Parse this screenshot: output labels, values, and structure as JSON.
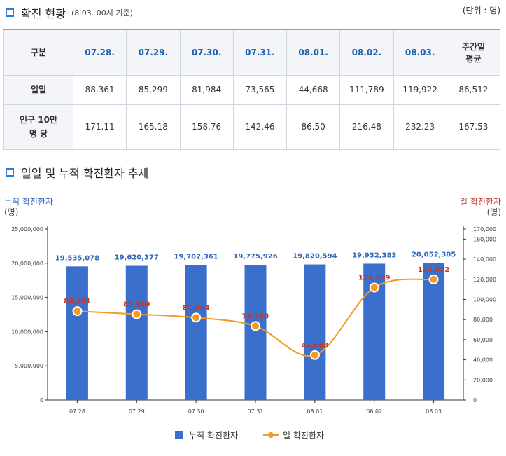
{
  "section1": {
    "title": "확진 현황",
    "subtitle": "(8.03. 00시 기준)",
    "unit": "(단위 : 명)"
  },
  "table": {
    "header_label": "구분",
    "dates": [
      "07.28.",
      "07.29.",
      "07.30.",
      "07.31.",
      "08.01.",
      "08.02.",
      "08.03."
    ],
    "avg_label_line1": "주간일",
    "avg_label_line2": "평균",
    "rows": [
      {
        "label_line1": "일일",
        "label_line2": "",
        "values": [
          "88,361",
          "85,299",
          "81,984",
          "73,565",
          "44,668",
          "111,789",
          "119,922"
        ],
        "avg": "86,512"
      },
      {
        "label_line1": "인구 10만",
        "label_line2": "명 당",
        "values": [
          "171.11",
          "165.18",
          "158.76",
          "142.46",
          "86.50",
          "216.48",
          "232.23"
        ],
        "avg": "167.53"
      }
    ]
  },
  "section2": {
    "title": "일일 및 누적 확진환자 추세"
  },
  "chart_data": {
    "type": "bar",
    "categories": [
      "07.28",
      "07.29",
      "07.30",
      "07.31",
      "08.01",
      "08.02",
      "08.03"
    ],
    "series": [
      {
        "name": "누적 확진환자",
        "type": "bar",
        "axis": "left",
        "values": [
          19535078,
          19620377,
          19702361,
          19775926,
          19820594,
          19932383,
          20052305
        ],
        "labels": [
          "19,535,078",
          "19,620,377",
          "19,702,361",
          "19,775,926",
          "19,820,594",
          "19,932,383",
          "20,052,305"
        ]
      },
      {
        "name": "일 확진환자",
        "type": "line",
        "axis": "right",
        "values": [
          88361,
          85299,
          81984,
          73565,
          44668,
          111789,
          119922
        ],
        "labels": [
          "88,361",
          "85,299",
          "81,984",
          "73,565",
          "44,668",
          "111,789",
          "119,922"
        ]
      }
    ],
    "left_axis": {
      "title": "누적 확진환자",
      "unit": "(명)",
      "range": [
        0,
        25000000
      ],
      "ticks": [
        "0",
        "5,000,000",
        "10,000,000",
        "15,000,000",
        "20,000,000",
        "25,000,000"
      ]
    },
    "right_axis": {
      "title": "일 확진환자",
      "unit": "(명)",
      "range": [
        0,
        170000
      ],
      "ticks": [
        "0",
        "20,000",
        "40,000",
        "60,000",
        "80,000",
        "100,000",
        "120,000",
        "140,000",
        "160,000",
        "170,000"
      ]
    },
    "colors": {
      "bar": "#3b6fcc",
      "line": "#f39a1f",
      "left_title": "#2f66b8",
      "right_title": "#c0392b"
    }
  }
}
